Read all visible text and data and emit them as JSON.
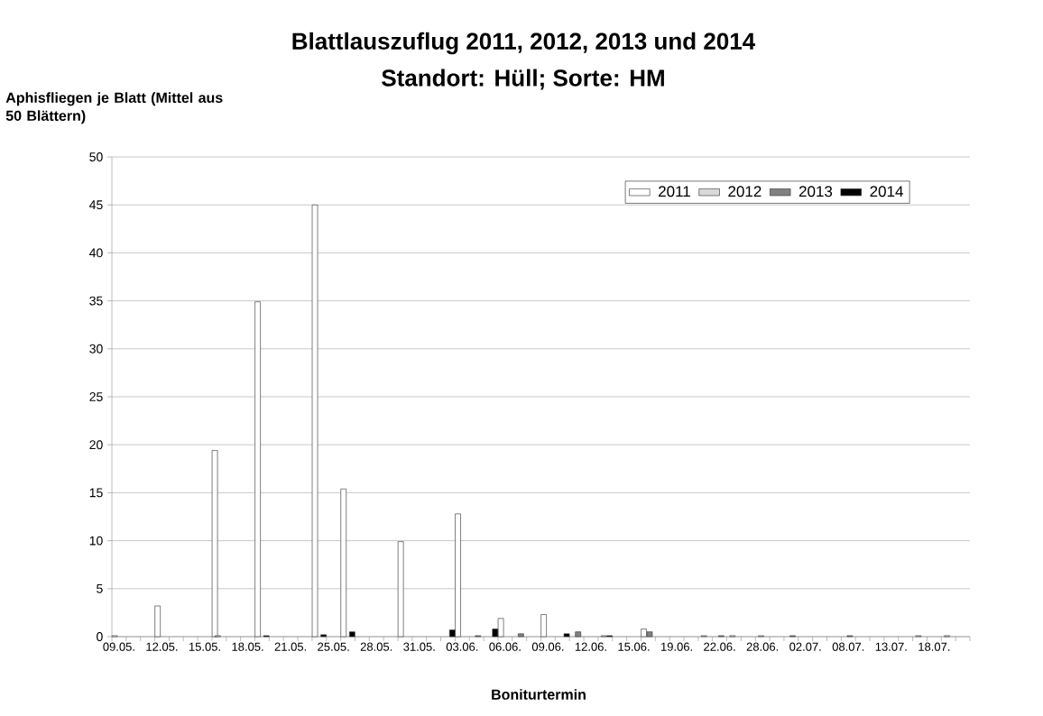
{
  "chart_data": {
    "type": "bar",
    "title": "Blattlauszuflug 2011, 2012, 2013 und 2014",
    "subtitle": "Standort: Hüll; Sorte: HM",
    "ylabel": "Aphisfliegen je Blatt (Mittel aus 50 Blättern)",
    "xlabel": "Boniturtermin",
    "categories": [
      "09.05.",
      null,
      null,
      "12.05.",
      null,
      null,
      "15.05.",
      null,
      null,
      "18.05.",
      null,
      null,
      "21.05.",
      null,
      null,
      "25.05.",
      null,
      null,
      "28.05.",
      null,
      null,
      "31.05.",
      null,
      null,
      "03.06.",
      null,
      null,
      "06.06.",
      null,
      null,
      "09.06.",
      null,
      null,
      "12.06.",
      null,
      null,
      "15.06.",
      null,
      null,
      "19.06.",
      null,
      null,
      "22.06.",
      null,
      null,
      "28.06.",
      null,
      null,
      "02.07.",
      null,
      null,
      "08.07.",
      null,
      null,
      "13.07.",
      null,
      null,
      "18.07.",
      null,
      null
    ],
    "series": [
      {
        "name": "2011",
        "color": "#ffffff",
        "values": [
          0.1,
          null,
          null,
          3.2,
          null,
          null,
          null,
          19.4,
          null,
          null,
          34.9,
          null,
          null,
          null,
          45,
          null,
          15.4,
          null,
          null,
          null,
          9.9,
          null,
          null,
          null,
          12.8,
          null,
          null,
          1.9,
          null,
          null,
          2.3,
          null,
          null,
          null,
          null,
          null,
          null,
          0.8,
          null,
          null,
          null,
          null,
          null,
          null,
          null,
          null,
          null,
          null,
          null,
          null,
          null,
          null,
          null,
          null,
          null,
          null,
          null,
          null,
          null,
          null
        ]
      },
      {
        "name": "2012",
        "color": "#d9d9d9",
        "values": [
          null,
          null,
          null,
          null,
          null,
          null,
          null,
          0.1,
          null,
          null,
          null,
          null,
          null,
          null,
          null,
          null,
          null,
          null,
          null,
          null,
          null,
          null,
          null,
          null,
          null,
          null,
          null,
          null,
          null,
          null,
          null,
          null,
          null,
          null,
          0.1,
          null,
          null,
          null,
          null,
          null,
          null,
          0.1,
          null,
          0.1,
          null,
          0.1,
          null,
          null,
          null,
          null,
          null,
          null,
          null,
          null,
          null,
          null,
          0.1,
          null,
          0.1,
          null
        ]
      },
      {
        "name": "2013",
        "color": "#808080",
        "values": [
          null,
          null,
          null,
          null,
          null,
          null,
          null,
          null,
          null,
          null,
          null,
          null,
          null,
          null,
          null,
          null,
          null,
          null,
          null,
          null,
          null,
          null,
          null,
          null,
          null,
          0.1,
          null,
          null,
          0.3,
          null,
          null,
          null,
          0.5,
          null,
          null,
          null,
          null,
          0.5,
          null,
          null,
          null,
          null,
          0.1,
          null,
          null,
          null,
          null,
          0.1,
          null,
          null,
          null,
          0.1,
          null,
          null,
          null,
          null,
          null,
          null,
          null,
          null
        ]
      },
      {
        "name": "2014",
        "color": "#000000",
        "values": [
          null,
          null,
          null,
          null,
          null,
          null,
          null,
          null,
          null,
          null,
          0.1,
          null,
          null,
          null,
          0.2,
          null,
          0.5,
          null,
          null,
          null,
          null,
          null,
          null,
          0.7,
          null,
          null,
          0.8,
          null,
          null,
          null,
          null,
          0.3,
          null,
          null,
          0.1,
          null,
          null,
          null,
          null,
          null,
          null,
          null,
          null,
          null,
          null,
          null,
          null,
          null,
          null,
          null,
          null,
          null,
          null,
          null,
          null,
          null,
          null,
          null,
          null,
          null
        ]
      }
    ],
    "ylim": [
      0,
      50
    ],
    "yticks": [
      0,
      5,
      10,
      15,
      20,
      25,
      30,
      35,
      40,
      45,
      50
    ],
    "grid": "y",
    "legend": "top right"
  }
}
